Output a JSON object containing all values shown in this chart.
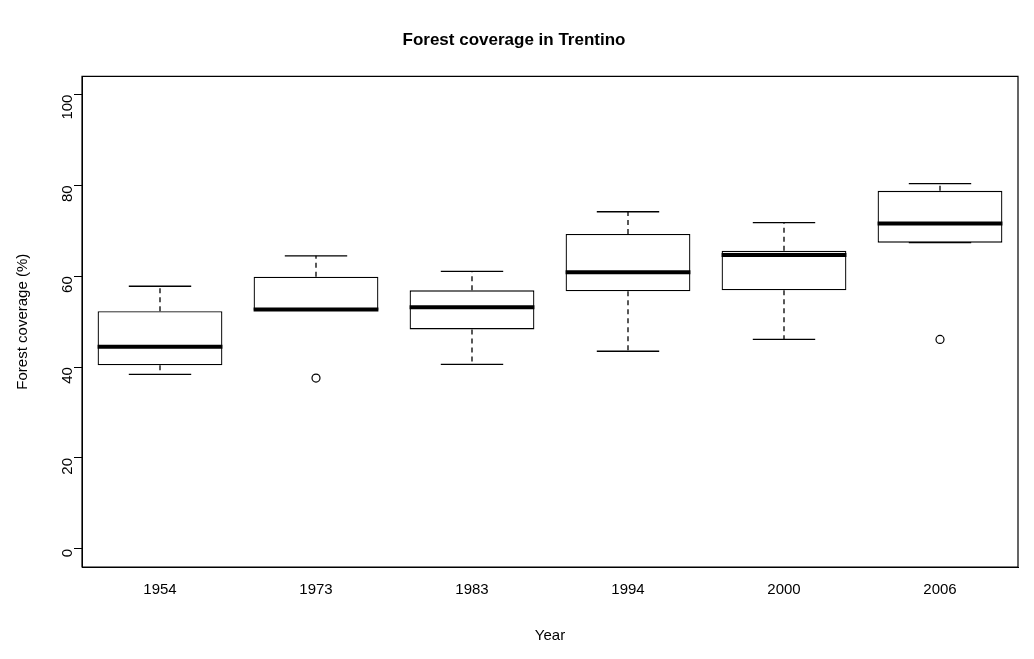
{
  "chart_data": {
    "type": "box",
    "title": "Forest coverage in Trentino",
    "xlabel": "Year",
    "ylabel": "Forest coverage (%)",
    "categories": [
      "1954",
      "1973",
      "1983",
      "1994",
      "2000",
      "2006"
    ],
    "color": "#000000",
    "boxes": [
      {
        "low": 38.4,
        "q1": 40.4,
        "median": 44.5,
        "q3": 52.3,
        "high": 57.8
      },
      {
        "low": 52.5,
        "q1": 52.5,
        "median": 52.7,
        "q3": 59.9,
        "high": 64.5,
        "outliers": [
          37.6
        ]
      },
      {
        "low": 40.6,
        "q1": 48.3,
        "median": 53.2,
        "q3": 56.9,
        "high": 61.1
      },
      {
        "low": 43.5,
        "q1": 56.7,
        "median": 60.9,
        "q3": 69.3,
        "high": 74.2
      },
      {
        "low": 46.1,
        "q1": 56.9,
        "median": 64.7,
        "q3": 65.6,
        "high": 71.8
      },
      {
        "low": 67.4,
        "q1": 67.4,
        "median": 71.6,
        "q3": 78.8,
        "high": 80.4,
        "outliers": [
          46.1
        ]
      }
    ],
    "ylim": [
      -4,
      104
    ],
    "yticks": [
      0,
      20,
      40,
      60,
      80,
      100
    ],
    "grid": false,
    "legend": false
  }
}
